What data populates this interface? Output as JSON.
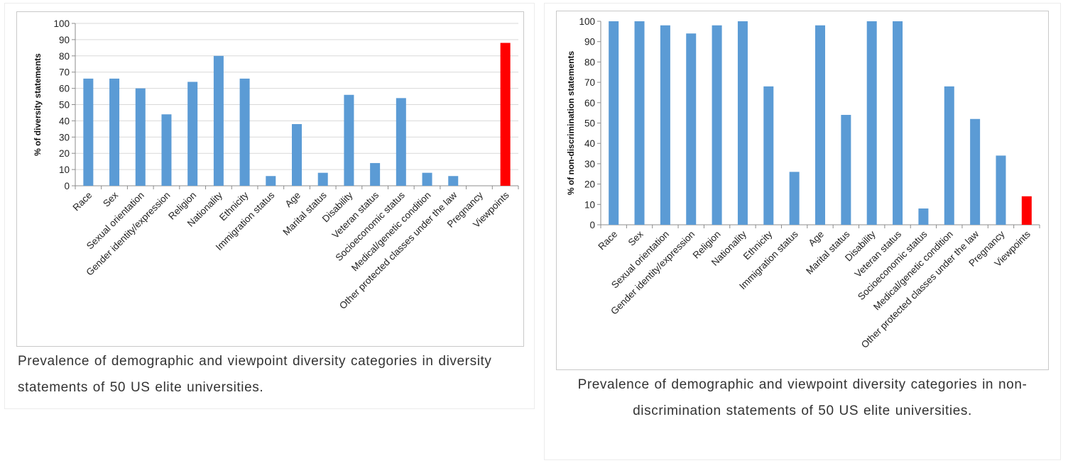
{
  "chart_data": [
    {
      "type": "bar",
      "ylabel": "% of diversity statements",
      "ylim": [
        0,
        100
      ],
      "yticks": [
        0,
        10,
        20,
        30,
        40,
        50,
        60,
        70,
        80,
        90,
        100
      ],
      "grid": true,
      "categories": [
        "Race",
        "Sex",
        "Sexual orientation",
        "Gender identity/expression",
        "Religion",
        "Nationality",
        "Ethnicity",
        "Immigration status",
        "Age",
        "Marital status",
        "Disability",
        "Veteran status",
        "Socioeconomic status",
        "Medical/genetic condition",
        "Other protected classes under the law",
        "Pregnancy",
        "Viewpoints"
      ],
      "values": [
        66,
        66,
        60,
        44,
        64,
        80,
        66,
        6,
        38,
        8,
        56,
        14,
        54,
        8,
        6,
        0,
        88
      ],
      "colors": {
        "default": "#5b9bd5",
        "highlight": "#ff0000"
      },
      "highlight_category": "Viewpoints",
      "caption": "Prevalence of demographic and viewpoint diversity categories in diversity statements of 50 US elite universities."
    },
    {
      "type": "bar",
      "ylabel": "% of non-discrimination statements",
      "ylim": [
        0,
        100
      ],
      "yticks": [
        0,
        10,
        20,
        30,
        40,
        50,
        60,
        70,
        80,
        90,
        100
      ],
      "grid": false,
      "categories": [
        "Race",
        "Sex",
        "Sexual orientation",
        "Gender identity/expression",
        "Religion",
        "Nationality",
        "Ethnicity",
        "Immigration status",
        "Age",
        "Marital status",
        "Disability",
        "Veteran status",
        "Socioeconomic status",
        "Medical/genetic condition",
        "Other protected classes under the law",
        "Pregnancy",
        "Viewpoints"
      ],
      "values": [
        100,
        100,
        98,
        94,
        98,
        100,
        68,
        26,
        98,
        54,
        100,
        100,
        8,
        68,
        52,
        34,
        14
      ],
      "colors": {
        "default": "#5b9bd5",
        "highlight": "#ff0000"
      },
      "highlight_category": "Viewpoints",
      "caption": "Prevalence of demographic and viewpoint diversity categories in non-discrimination statements of 50 US elite universities."
    }
  ]
}
